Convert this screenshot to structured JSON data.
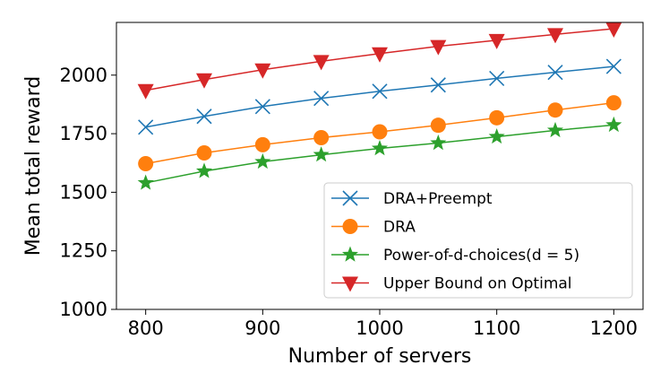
{
  "chart_data": {
    "type": "line",
    "title": "",
    "xlabel": "Number of servers",
    "ylabel": "Mean total reward",
    "x": [
      800,
      850,
      900,
      950,
      1000,
      1050,
      1100,
      1150,
      1200
    ],
    "xticks": [
      800,
      900,
      1000,
      1100,
      1200
    ],
    "yticks": [
      1000,
      1250,
      1500,
      1750,
      2000
    ],
    "xlim": [
      775,
      1225
    ],
    "ylim": [
      1000,
      2225
    ],
    "grid": false,
    "legend_position": "lower-right",
    "series": [
      {
        "name": "DRA+Preempt",
        "color": "#1f77b4",
        "marker": "x",
        "values": [
          1778,
          1824,
          1866,
          1901,
          1931,
          1958,
          1986,
          2012,
          2037
        ]
      },
      {
        "name": "DRA",
        "color": "#ff7f0e",
        "marker": "circle",
        "values": [
          1622,
          1668,
          1703,
          1733,
          1758,
          1786,
          1818,
          1851,
          1882
        ]
      },
      {
        "name": "Power-of-d-choices(d = 5)",
        "color": "#2ca02c",
        "marker": "star",
        "values": [
          1540,
          1590,
          1630,
          1660,
          1687,
          1710,
          1737,
          1764,
          1787
        ]
      },
      {
        "name": "Upper Bound on Optimal",
        "color": "#d62728",
        "marker": "triangle-down",
        "values": [
          1935,
          1981,
          2023,
          2059,
          2092,
          2123,
          2149,
          2174,
          2198
        ]
      }
    ]
  }
}
